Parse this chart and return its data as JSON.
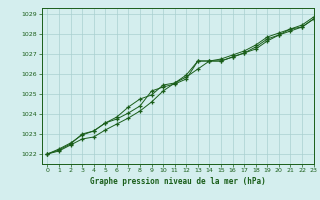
{
  "xlabel": "Graphe pression niveau de la mer (hPa)",
  "bg_color": "#d4eeee",
  "grid_color": "#aad0d0",
  "line_color": "#1a5e1a",
  "xlim": [
    -0.5,
    23
  ],
  "ylim": [
    1021.5,
    1029.3
  ],
  "yticks": [
    1022,
    1023,
    1024,
    1025,
    1026,
    1027,
    1028,
    1029
  ],
  "xticks": [
    0,
    1,
    2,
    3,
    4,
    5,
    6,
    7,
    8,
    9,
    10,
    11,
    12,
    13,
    14,
    15,
    16,
    17,
    18,
    19,
    20,
    21,
    22,
    23
  ],
  "series1": [
    1022.0,
    1022.15,
    1022.45,
    1022.75,
    1022.85,
    1023.2,
    1023.5,
    1023.8,
    1024.15,
    1024.6,
    1025.15,
    1025.55,
    1025.85,
    1026.25,
    1026.65,
    1026.65,
    1026.85,
    1027.05,
    1027.25,
    1027.65,
    1027.95,
    1028.15,
    1028.35,
    1028.75
  ],
  "series2": [
    1022.0,
    1022.2,
    1022.5,
    1023.0,
    1023.15,
    1023.55,
    1023.75,
    1024.05,
    1024.4,
    1025.15,
    1025.35,
    1025.5,
    1025.75,
    1026.65,
    1026.65,
    1026.65,
    1026.85,
    1027.05,
    1027.35,
    1027.75,
    1027.95,
    1028.25,
    1028.35,
    1028.75
  ],
  "series3": [
    1022.0,
    1022.25,
    1022.55,
    1022.95,
    1023.15,
    1023.55,
    1023.85,
    1024.35,
    1024.75,
    1024.95,
    1025.45,
    1025.55,
    1025.95,
    1026.65,
    1026.65,
    1026.75,
    1026.95,
    1027.15,
    1027.45,
    1027.85,
    1028.05,
    1028.25,
    1028.45,
    1028.85
  ]
}
